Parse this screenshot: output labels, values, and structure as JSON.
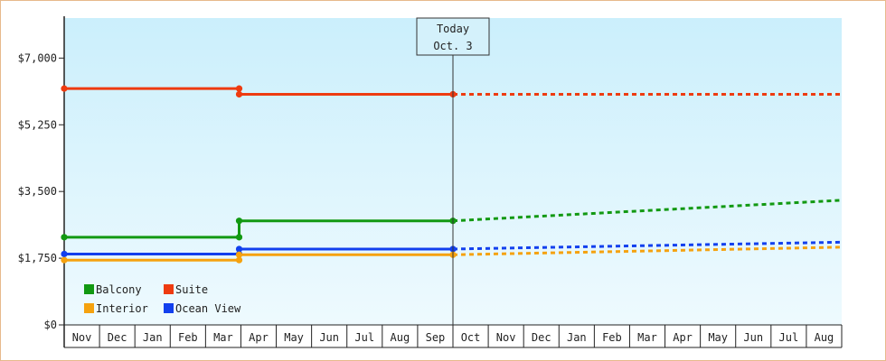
{
  "chart_data": {
    "type": "line",
    "ylim": [
      0,
      8050
    ],
    "y_ticks": [
      {
        "value": 0,
        "label": "$0"
      },
      {
        "value": 1750,
        "label": "$1,750"
      },
      {
        "value": 3500,
        "label": "$3,500"
      },
      {
        "value": 5250,
        "label": "$5,250"
      },
      {
        "value": 7000,
        "label": "$7,000"
      }
    ],
    "months": [
      "Nov",
      "Dec",
      "Jan",
      "Feb",
      "Mar",
      "Apr",
      "May",
      "Jun",
      "Jul",
      "Aug",
      "Sep",
      "Oct",
      "Nov",
      "Dec",
      "Jan",
      "Feb",
      "Mar",
      "Apr",
      "May",
      "Jun",
      "Jul",
      "Aug"
    ],
    "x_range": [
      0,
      22
    ],
    "today": {
      "x": 11.0,
      "line1": "Today",
      "line2": "Oct. 3"
    },
    "grid": "month ticks only",
    "legend_placement": "bottom-left",
    "series": [
      {
        "name": "Balcony",
        "color": "#129912",
        "actual": [
          [
            0,
            2300
          ],
          [
            4.95,
            2300
          ],
          [
            4.95,
            2730
          ],
          [
            11.0,
            2730
          ]
        ],
        "forecast": [
          [
            11.0,
            2730
          ],
          [
            22,
            3270
          ]
        ]
      },
      {
        "name": "Suite",
        "color": "#ee3b10",
        "actual": [
          [
            0,
            6200
          ],
          [
            4.95,
            6200
          ],
          [
            4.95,
            6050
          ],
          [
            11.0,
            6050
          ]
        ],
        "forecast": [
          [
            11.0,
            6050
          ],
          [
            22,
            6050
          ]
        ]
      },
      {
        "name": "Interior",
        "color": "#f5a20f",
        "actual": [
          [
            0,
            1700
          ],
          [
            4.95,
            1700
          ],
          [
            4.95,
            1840
          ],
          [
            11.0,
            1840
          ]
        ],
        "forecast": [
          [
            11.0,
            1840
          ],
          [
            22,
            2040
          ]
        ]
      },
      {
        "name": "Ocean View",
        "color": "#1240ee",
        "actual": [
          [
            0,
            1860
          ],
          [
            4.95,
            1860
          ],
          [
            4.95,
            1990
          ],
          [
            11.0,
            1990
          ]
        ],
        "forecast": [
          [
            11.0,
            1990
          ],
          [
            22,
            2170
          ]
        ]
      }
    ]
  }
}
